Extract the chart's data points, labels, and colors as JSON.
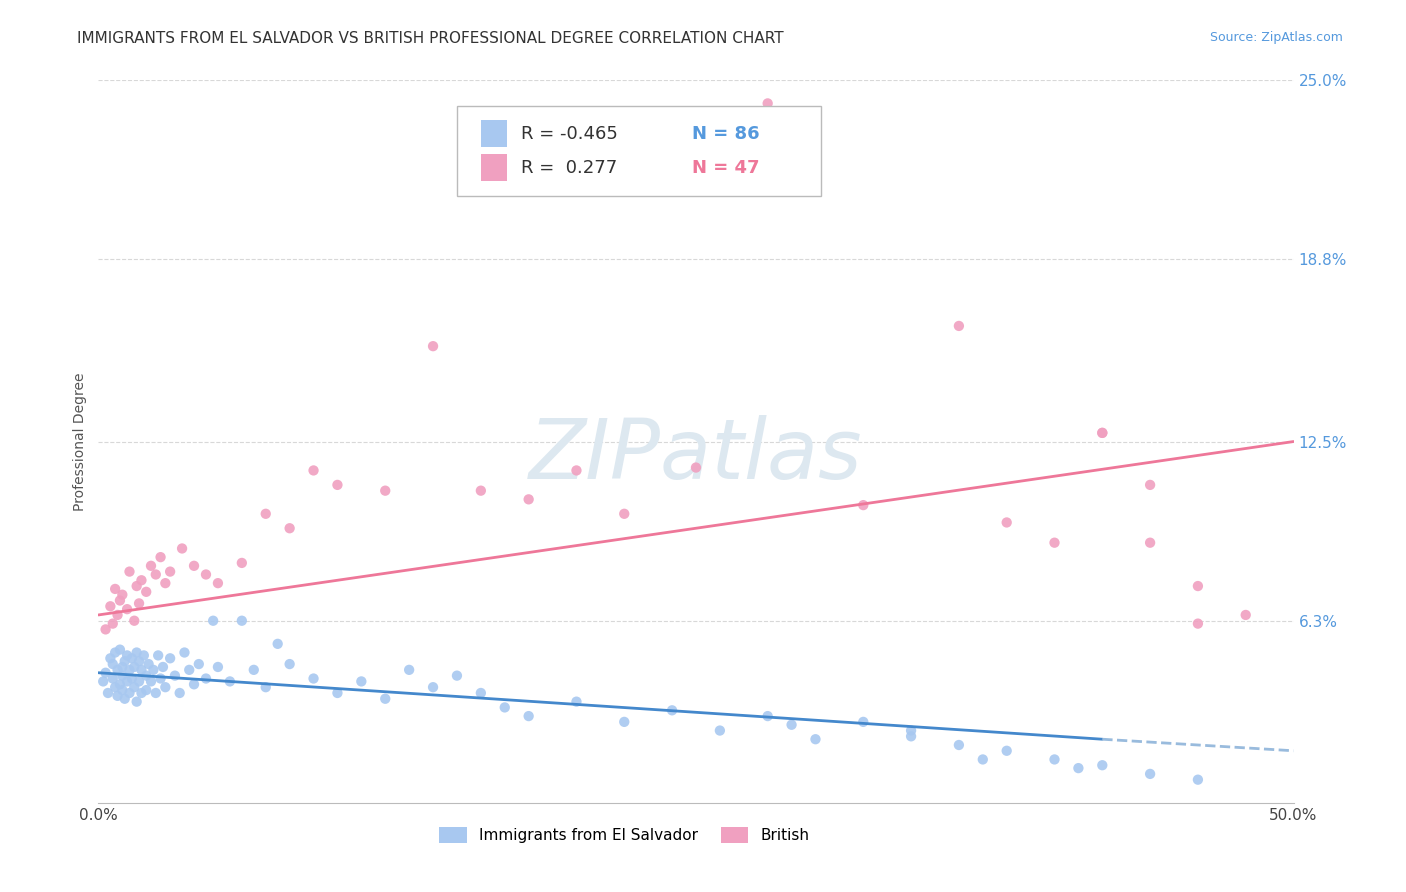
{
  "title": "IMMIGRANTS FROM EL SALVADOR VS BRITISH PROFESSIONAL DEGREE CORRELATION CHART",
  "source": "Source: ZipAtlas.com",
  "ylabel": "Professional Degree",
  "xlim": [
    0.0,
    0.5
  ],
  "ylim": [
    0.0,
    0.25
  ],
  "ytick_values": [
    0.063,
    0.125,
    0.188,
    0.25
  ],
  "ytick_labels": [
    "6.3%",
    "12.5%",
    "18.8%",
    "25.0%"
  ],
  "xtick_values": [
    0.0,
    0.5
  ],
  "xtick_labels": [
    "0.0%",
    "50.0%"
  ],
  "background_color": "#ffffff",
  "grid_color": "#d8d8d8",
  "watermark_text": "ZIPatlas",
  "watermark_color": "#dde8f0",
  "legend_r_blue": "-0.465",
  "legend_n_blue": "86",
  "legend_r_pink": "0.277",
  "legend_n_pink": "47",
  "blue_color": "#a8c8f0",
  "pink_color": "#f0a0c0",
  "blue_line_color": "#4488cc",
  "pink_line_color": "#ee7799",
  "blue_dash_color": "#99bbdd",
  "title_fontsize": 11,
  "source_fontsize": 9,
  "axis_label_fontsize": 10,
  "tick_fontsize": 11,
  "legend_fontsize": 13,
  "legend_label_blue": "Immigrants from El Salvador",
  "legend_label_pink": "British",
  "blue_scatter_x": [
    0.002,
    0.003,
    0.004,
    0.005,
    0.006,
    0.006,
    0.007,
    0.007,
    0.008,
    0.008,
    0.009,
    0.009,
    0.01,
    0.01,
    0.01,
    0.011,
    0.011,
    0.012,
    0.012,
    0.013,
    0.013,
    0.014,
    0.014,
    0.015,
    0.015,
    0.016,
    0.016,
    0.017,
    0.017,
    0.018,
    0.018,
    0.019,
    0.02,
    0.02,
    0.021,
    0.022,
    0.023,
    0.024,
    0.025,
    0.026,
    0.027,
    0.028,
    0.03,
    0.032,
    0.034,
    0.036,
    0.038,
    0.04,
    0.042,
    0.045,
    0.048,
    0.05,
    0.055,
    0.06,
    0.065,
    0.07,
    0.075,
    0.08,
    0.09,
    0.1,
    0.11,
    0.12,
    0.13,
    0.14,
    0.15,
    0.16,
    0.17,
    0.18,
    0.2,
    0.22,
    0.24,
    0.26,
    0.28,
    0.3,
    0.32,
    0.34,
    0.36,
    0.38,
    0.4,
    0.42,
    0.44,
    0.46,
    0.34,
    0.29,
    0.37,
    0.41
  ],
  "blue_scatter_y": [
    0.042,
    0.045,
    0.038,
    0.05,
    0.043,
    0.048,
    0.04,
    0.052,
    0.037,
    0.046,
    0.041,
    0.053,
    0.044,
    0.047,
    0.039,
    0.049,
    0.036,
    0.051,
    0.042,
    0.046,
    0.038,
    0.05,
    0.043,
    0.047,
    0.04,
    0.052,
    0.035,
    0.049,
    0.042,
    0.046,
    0.038,
    0.051,
    0.044,
    0.039,
    0.048,
    0.042,
    0.046,
    0.038,
    0.051,
    0.043,
    0.047,
    0.04,
    0.05,
    0.044,
    0.038,
    0.052,
    0.046,
    0.041,
    0.048,
    0.043,
    0.063,
    0.047,
    0.042,
    0.063,
    0.046,
    0.04,
    0.055,
    0.048,
    0.043,
    0.038,
    0.042,
    0.036,
    0.046,
    0.04,
    0.044,
    0.038,
    0.033,
    0.03,
    0.035,
    0.028,
    0.032,
    0.025,
    0.03,
    0.022,
    0.028,
    0.025,
    0.02,
    0.018,
    0.015,
    0.013,
    0.01,
    0.008,
    0.023,
    0.027,
    0.015,
    0.012
  ],
  "pink_scatter_x": [
    0.003,
    0.005,
    0.006,
    0.007,
    0.008,
    0.009,
    0.01,
    0.012,
    0.013,
    0.015,
    0.016,
    0.017,
    0.018,
    0.02,
    0.022,
    0.024,
    0.026,
    0.028,
    0.03,
    0.035,
    0.04,
    0.045,
    0.05,
    0.06,
    0.07,
    0.08,
    0.09,
    0.1,
    0.12,
    0.14,
    0.16,
    0.18,
    0.2,
    0.22,
    0.25,
    0.28,
    0.32,
    0.36,
    0.38,
    0.4,
    0.42,
    0.44,
    0.46,
    0.48,
    0.44,
    0.42,
    0.46
  ],
  "pink_scatter_y": [
    0.06,
    0.068,
    0.062,
    0.074,
    0.065,
    0.07,
    0.072,
    0.067,
    0.08,
    0.063,
    0.075,
    0.069,
    0.077,
    0.073,
    0.082,
    0.079,
    0.085,
    0.076,
    0.08,
    0.088,
    0.082,
    0.079,
    0.076,
    0.083,
    0.1,
    0.095,
    0.115,
    0.11,
    0.108,
    0.158,
    0.108,
    0.105,
    0.115,
    0.1,
    0.116,
    0.242,
    0.103,
    0.165,
    0.097,
    0.09,
    0.128,
    0.09,
    0.075,
    0.065,
    0.11,
    0.128,
    0.062
  ]
}
